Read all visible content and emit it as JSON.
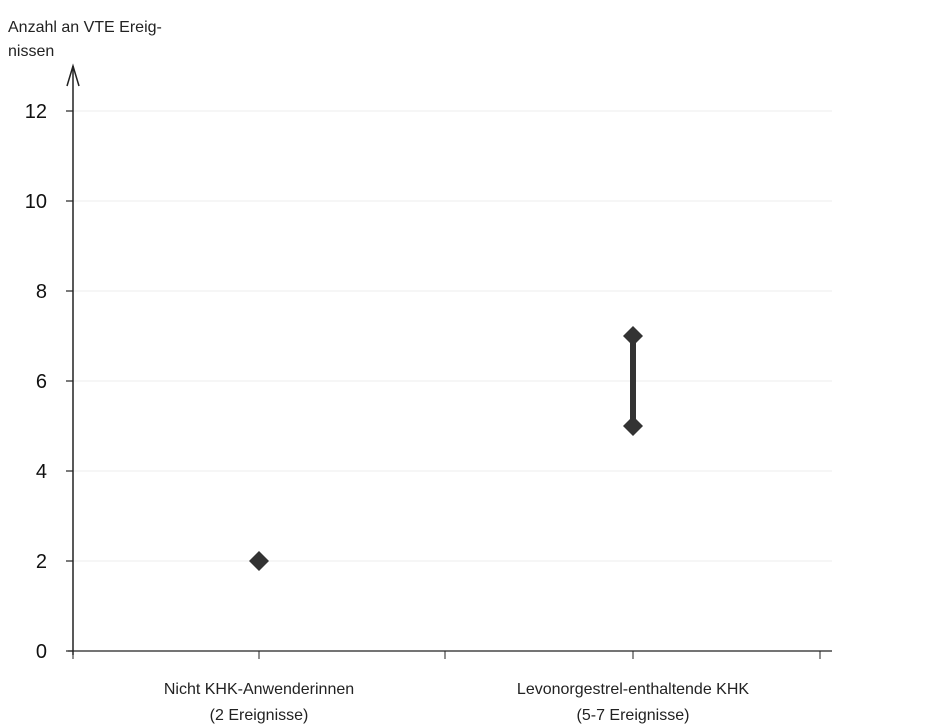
{
  "chart_data": {
    "type": "scatter",
    "ylabel": "Anzahl an VTE Ereig-nissen",
    "ylabel_lines": [
      "Anzahl an VTE Ereig-",
      "nissen"
    ],
    "xlabel": "",
    "ylim": [
      0,
      12
    ],
    "yticks": [
      0,
      2,
      4,
      6,
      8,
      10,
      12
    ],
    "grid": true,
    "legend": "none",
    "categories": [
      {
        "lines": [
          "Nicht KHK-Anwenderinnen",
          "(2 Ereignisse)"
        ],
        "point": 2
      },
      {
        "lines": [
          "Levonorgestrel-enthaltende KHK",
          "(5-7 Ereignisse)"
        ],
        "range": [
          5,
          7
        ]
      }
    ],
    "colors": {
      "marker": "#333333",
      "axis": "#222222",
      "grid": "#eeeeee"
    }
  }
}
